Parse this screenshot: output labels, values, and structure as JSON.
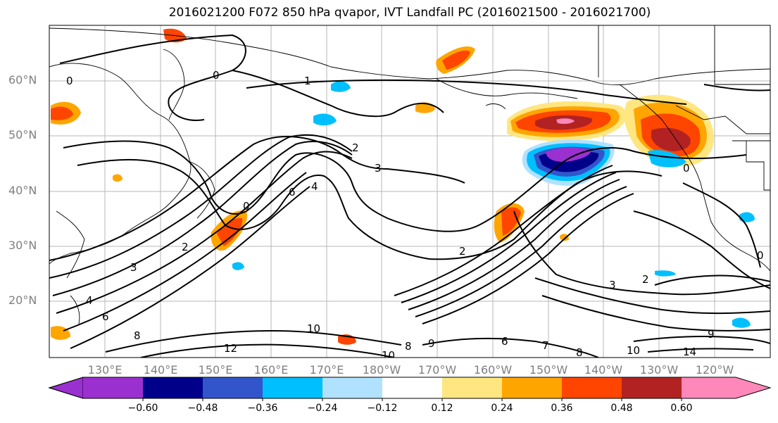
{
  "title": "2016021200 F072 850 hPa qvapor, IVT Landfall PC (2016021500 - 2016021700)",
  "lat_labels": [
    "60°N",
    "50°N",
    "40°N",
    "30°N",
    "20°N"
  ],
  "lon_labels": [
    "130°E",
    "140°E",
    "150°E",
    "160°E",
    "170°E",
    "180°W",
    "170°W",
    "160°W",
    "150°W",
    "140°W",
    "130°W",
    "120°W"
  ],
  "contour_labels": [
    "0",
    "0",
    "1",
    "2",
    "2",
    "3",
    "4",
    "6",
    "0",
    "2",
    "3",
    "4",
    "6",
    "8",
    "10",
    "12",
    "8",
    "9",
    "10",
    "6",
    "7",
    "8",
    "10",
    "14",
    "3",
    "2",
    "9",
    "0",
    "0"
  ],
  "colorbar": {
    "ticks": [
      "−0.60",
      "−0.48",
      "−0.36",
      "−0.24",
      "−0.12",
      "0.12",
      "0.24",
      "0.36",
      "0.48",
      "0.60"
    ],
    "colors": [
      "#9b30d0",
      "#00008b",
      "#3355cc",
      "#00bfff",
      "#b0e2ff",
      "#ffffff",
      "#ffe680",
      "#ffa500",
      "#ff4500",
      "#b22222",
      "#ff88bb"
    ]
  }
}
